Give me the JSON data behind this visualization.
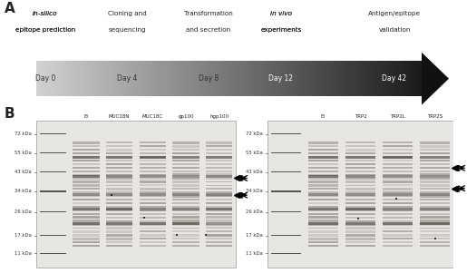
{
  "panel_A_label": "A",
  "panel_B_label": "B",
  "arrow_steps": [
    "Day 0",
    "Day 4",
    "Day 8",
    "Day 12",
    "Day 42"
  ],
  "arrow_labels_top": [
    [
      "In-silico",
      "epitope prediction"
    ],
    [
      "Cloning and",
      "sequencing"
    ],
    [
      "Transformation",
      "and secretion"
    ],
    [
      "In vivo",
      "experiments"
    ],
    [
      "Antigen/epitope",
      "validation"
    ]
  ],
  "arrow_label_italic": [
    true,
    false,
    false,
    true,
    false
  ],
  "gel_left_title": [
    "EI",
    "MUC18N",
    "MUC18C",
    "gp100",
    "hgp100"
  ],
  "gel_right_title": [
    "EI",
    "TRP2",
    "TRP2L",
    "TRP2S"
  ],
  "gel_left_mw": [
    "72 kDa",
    "55 kDa",
    "43 kDa",
    "34 kDa",
    "26 kDa",
    "17 kDa",
    "11 kDa"
  ],
  "gel_right_mw": [
    "72 kDa",
    "55 kDa",
    "43 kDa",
    "34 kDa",
    "26 kDa",
    "17 kDa",
    "11 kDa"
  ],
  "bg_color": "#ffffff",
  "gel_bg": "#e8e8e4",
  "arrow_color_start": "#d0d0d0",
  "arrow_color_end": "#1a1a1a",
  "text_color": "#222222"
}
